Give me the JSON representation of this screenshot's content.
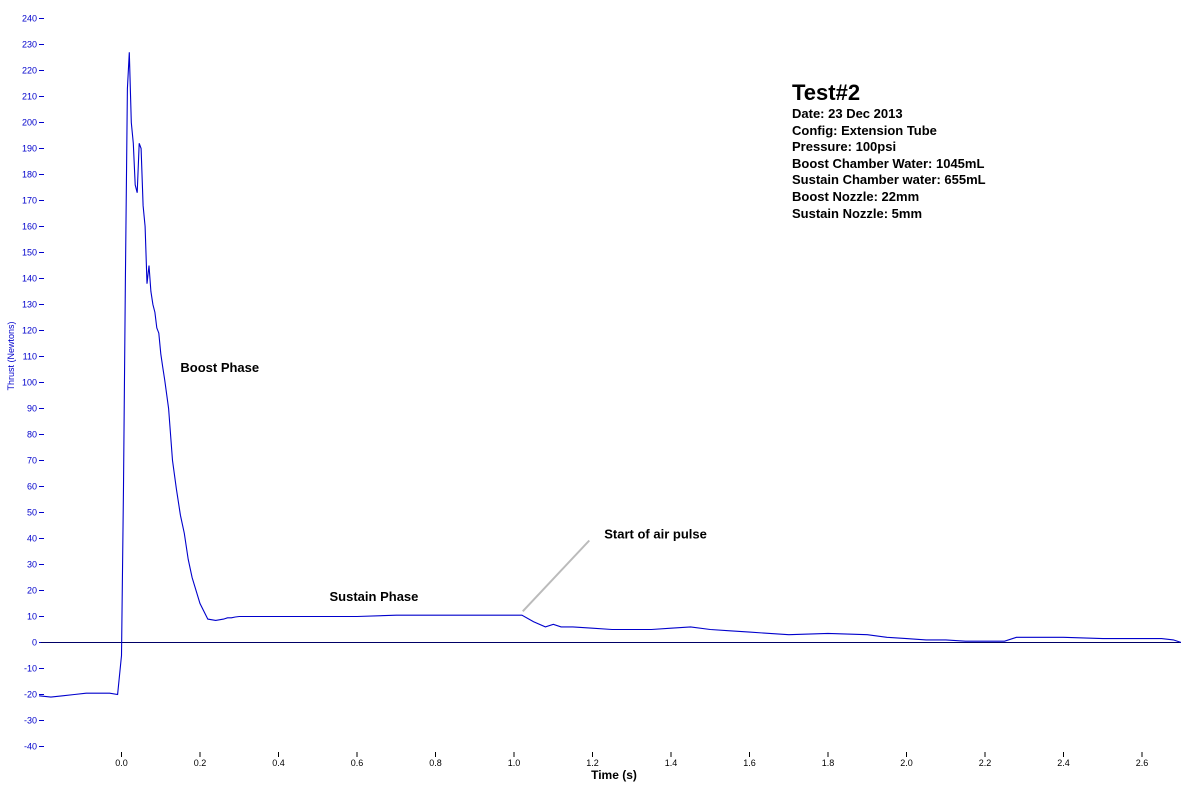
{
  "chart_data": {
    "type": "line",
    "title": "Test#2",
    "xlabel": "Time (s)",
    "ylabel": "Thrust (Newtons)",
    "xlim": [
      -0.21,
      2.7
    ],
    "ylim": [
      -40,
      240
    ],
    "x_ticks": [
      "0.0",
      "0.2",
      "0.4",
      "0.6",
      "0.8",
      "1.0",
      "1.2",
      "1.4",
      "1.6",
      "1.8",
      "2.0",
      "2.2",
      "2.4",
      "2.6"
    ],
    "y_ticks": [
      "-40",
      "-30",
      "-20",
      "-10",
      "0",
      "10",
      "20",
      "30",
      "40",
      "50",
      "60",
      "70",
      "80",
      "90",
      "100",
      "110",
      "120",
      "130",
      "140",
      "150",
      "160",
      "170",
      "180",
      "190",
      "200",
      "210",
      "220",
      "230",
      "240"
    ],
    "grid": false,
    "colors": {
      "series": "#0000cc",
      "zero_line": "#000066",
      "annotation_line": "#bbbbbb"
    },
    "series": [
      {
        "x": [
          -0.21,
          -0.18,
          -0.15,
          -0.12,
          -0.09,
          -0.06,
          -0.03,
          -0.01,
          0.0,
          0.005,
          0.01,
          0.015,
          0.02,
          0.025,
          0.03,
          0.035,
          0.04,
          0.045,
          0.05,
          0.055,
          0.06,
          0.065,
          0.07,
          0.075,
          0.08,
          0.085,
          0.09,
          0.095,
          0.1,
          0.105,
          0.11,
          0.12,
          0.13,
          0.14,
          0.15,
          0.16,
          0.17,
          0.18,
          0.2,
          0.22,
          0.24,
          0.26,
          0.27,
          0.28,
          0.29,
          0.3,
          0.35,
          0.4,
          0.5,
          0.6,
          0.7,
          0.8,
          0.9,
          1.0,
          1.02,
          1.05,
          1.08,
          1.1,
          1.12,
          1.15,
          1.2,
          1.25,
          1.3,
          1.35,
          1.4,
          1.45,
          1.5,
          1.55,
          1.6,
          1.7,
          1.8,
          1.9,
          1.95,
          2.0,
          2.05,
          2.1,
          2.15,
          2.2,
          2.25,
          2.28,
          2.3,
          2.4,
          2.5,
          2.6,
          2.65,
          2.68,
          2.7
        ],
        "y": [
          -20.5,
          -21,
          -20.5,
          -20,
          -19.5,
          -19.5,
          -19.5,
          -20,
          -5,
          60,
          140,
          213,
          227,
          200,
          192,
          176,
          173,
          192,
          190,
          168,
          160,
          138,
          145,
          135,
          130,
          127,
          121,
          119,
          111,
          106,
          101,
          90,
          70,
          59,
          49,
          42,
          32,
          25,
          15,
          9,
          8.5,
          9,
          9.5,
          9.5,
          9.8,
          10,
          10,
          10,
          10,
          10,
          10.5,
          10.5,
          10.5,
          10.5,
          10.5,
          8,
          6,
          7,
          6,
          6,
          5.5,
          5,
          5,
          5,
          5.5,
          6,
          5,
          4.5,
          4,
          3,
          3.5,
          3,
          2,
          1.5,
          1,
          1,
          0.5,
          0.5,
          0.5,
          2,
          2,
          2,
          1.5,
          1.5,
          1.5,
          1,
          0
        ]
      }
    ],
    "annotations": [
      {
        "text": "Boost Phase",
        "x": 0.15,
        "y": 104
      },
      {
        "text": "Sustain Phase",
        "x": 0.53,
        "y": 16
      },
      {
        "text": "Start of air pulse",
        "x": 1.23,
        "y": 40,
        "arrow_x": 1.03,
        "arrow_y": 12
      }
    ]
  },
  "info_box": {
    "title": "Test#2",
    "lines": [
      "Date: 23 Dec 2013",
      "Config: Extension Tube",
      "Pressure: 100psi",
      "Boost Chamber Water: 1045mL",
      "Sustain Chamber water: 655mL",
      "Boost Nozzle: 22mm",
      "Sustain Nozzle: 5mm"
    ]
  }
}
